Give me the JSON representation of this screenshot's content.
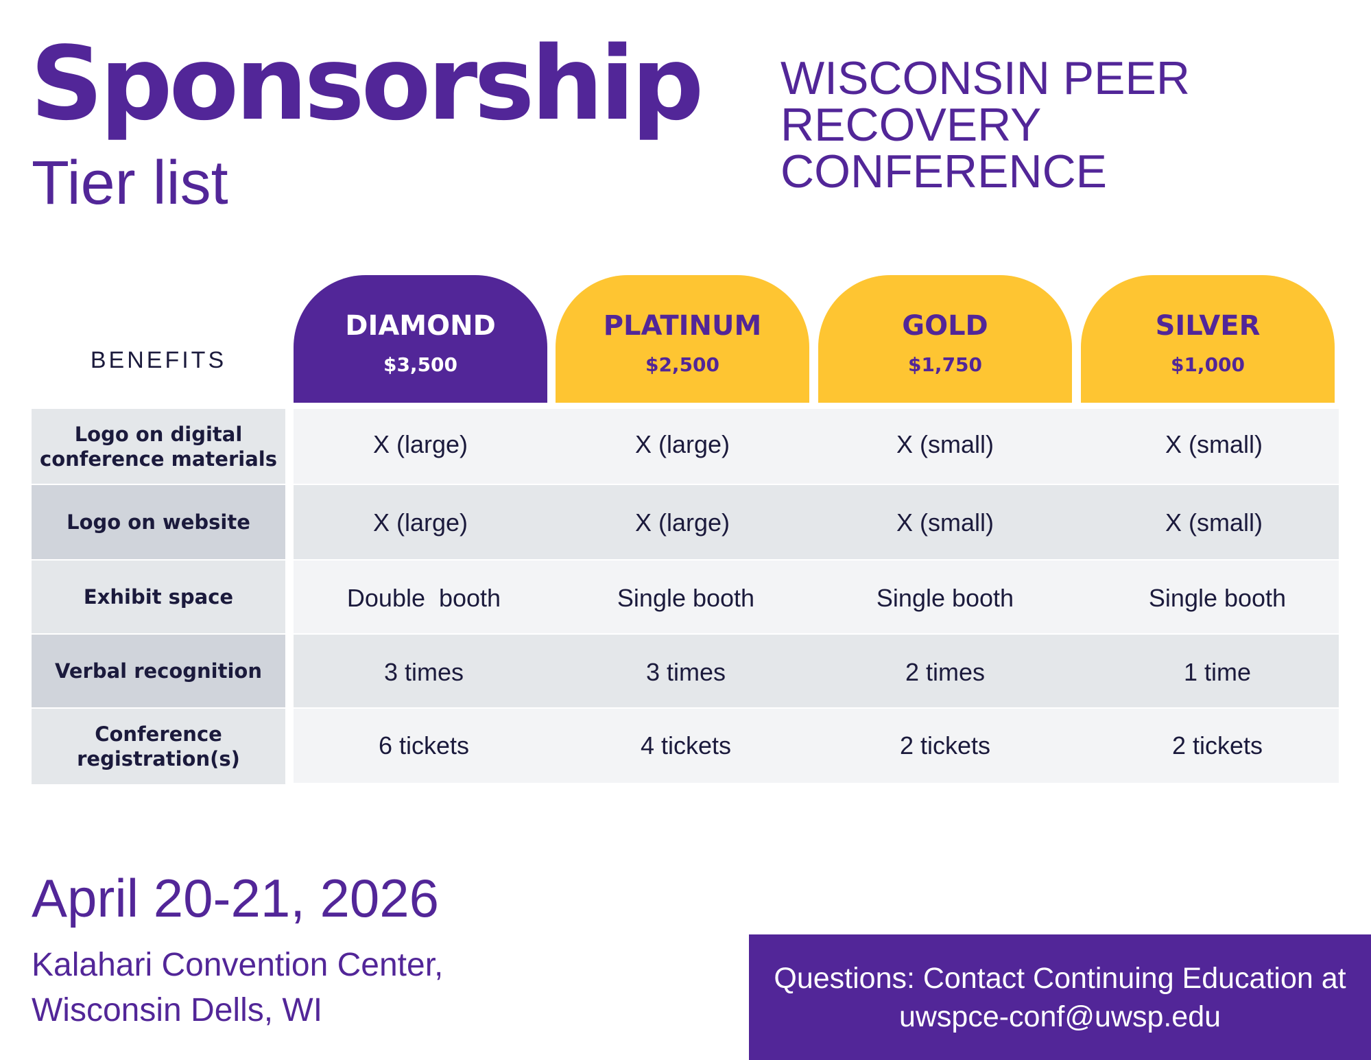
{
  "header": {
    "title": "Sponsorship",
    "subtitle": "Tier list",
    "conference_name": "WISCONSIN PEER RECOVERY CONFERENCE"
  },
  "table": {
    "benefits_header": "BENEFITS",
    "tiers": [
      {
        "name": "DIAMOND",
        "price": "$3,500",
        "bg_color": "#522698",
        "text_color": "#ffffff"
      },
      {
        "name": "PLATINUM",
        "price": "$2,500",
        "bg_color": "#fec532",
        "text_color": "#522698"
      },
      {
        "name": "GOLD",
        "price": "$1,750",
        "bg_color": "#fec532",
        "text_color": "#522698"
      },
      {
        "name": "SILVER",
        "price": "$1,000",
        "bg_color": "#fec532",
        "text_color": "#522698"
      }
    ],
    "rows": [
      {
        "benefit": "Logo on digital conference materials",
        "values": [
          "X (large)",
          "X (large)",
          "X (small)",
          "X (small)"
        ]
      },
      {
        "benefit": "Logo on website",
        "values": [
          "X (large)",
          "X (large)",
          "X (small)",
          "X (small)"
        ]
      },
      {
        "benefit": "Exhibit space",
        "values": [
          "Double  booth",
          "Single booth",
          "Single booth",
          "Single booth"
        ]
      },
      {
        "benefit": "Verbal recognition",
        "values": [
          "3 times",
          "3 times",
          "2 times",
          "1 time"
        ]
      },
      {
        "benefit": "Conference registration(s)",
        "values": [
          "6 tickets",
          "4 tickets",
          "2 tickets",
          "2 tickets"
        ]
      }
    ]
  },
  "event": {
    "date": "April 20-21, 2026",
    "venue": "Kalahari Convention Center, Wisconsin Dells, WI"
  },
  "contact": {
    "text": "Questions: Contact Continuing Education at uwspce-conf@uwsp.edu"
  },
  "colors": {
    "brand_purple": "#522698",
    "brand_yellow": "#fec532",
    "row_light": "#f3f4f6",
    "row_dark": "#e4e7ea",
    "label_light": "#e4e7ea",
    "label_dark": "#d0d4db",
    "text_dark": "#1b1a3c"
  }
}
